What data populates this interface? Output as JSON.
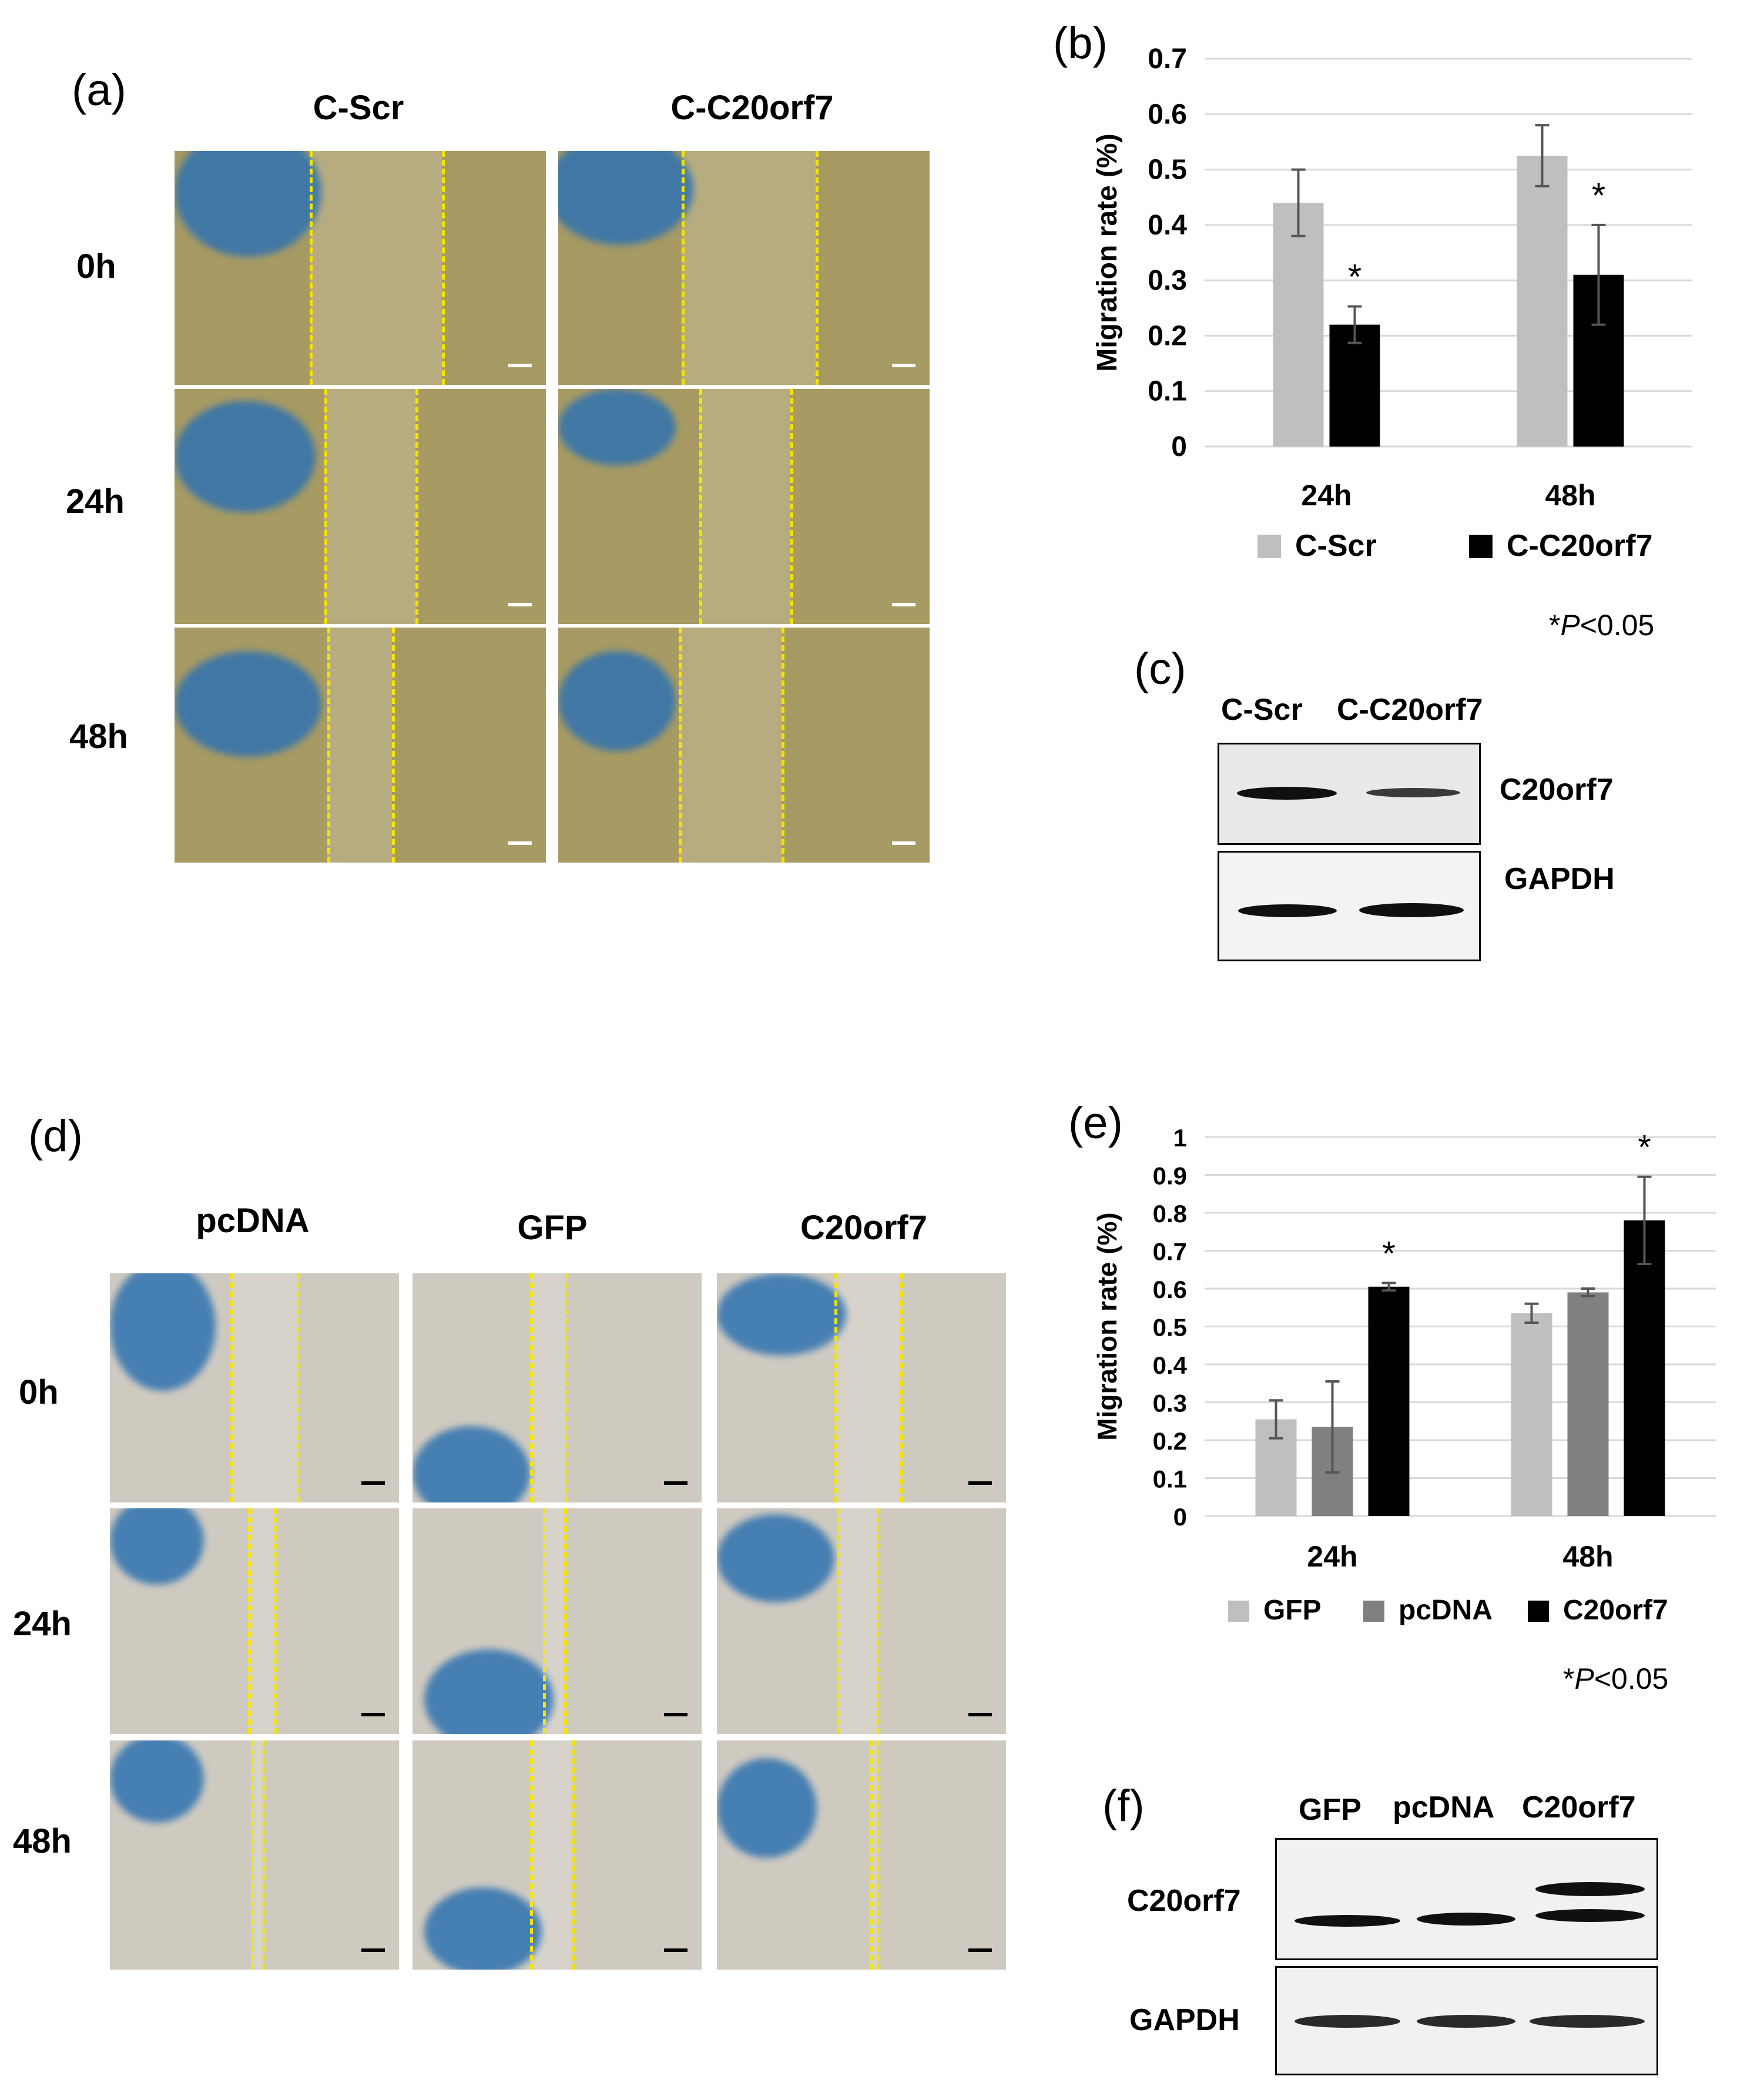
{
  "panels": {
    "a": {
      "letter": "(a)",
      "columns": [
        "C-Scr",
        "C-C20orf7"
      ],
      "rows": [
        "0h",
        "24h",
        "48h"
      ]
    },
    "b": {
      "letter": "(b)"
    },
    "c": {
      "letter": "(c)",
      "lanes": [
        "C-Scr",
        "C-C20orf7"
      ],
      "rows": [
        "C20orf7",
        "GAPDH"
      ]
    },
    "d": {
      "letter": "(d)",
      "columns": [
        "pcDNA",
        "GFP",
        "C20orf7"
      ],
      "rows": [
        "0h",
        "24h",
        "48h"
      ]
    },
    "e": {
      "letter": "(e)"
    },
    "f": {
      "letter": "(f)",
      "lanes": [
        "GFP",
        "pcDNA",
        "C20orf7"
      ],
      "rows": [
        "C20orf7",
        "GAPDH"
      ]
    }
  },
  "colors": {
    "cscr": "#bfbfbf",
    "c20orf7": "#000000",
    "gfp": "#bfbfbf",
    "pcdna": "#808080",
    "micro_a": "#a79a63",
    "micro_d": "#cfcac0",
    "blue_blob": "#2f72b0",
    "dash": "#f4e400"
  },
  "chart_data": [
    {
      "type": "bar",
      "panel": "b",
      "categories": [
        "24h",
        "48h"
      ],
      "series": [
        {
          "name": "C-Scr",
          "values": [
            0.44,
            0.525
          ],
          "errors": [
            0.06,
            0.055
          ],
          "color": "#bfbfbf"
        },
        {
          "name": "C-C20orf7",
          "values": [
            0.22,
            0.31
          ],
          "errors": [
            0.033,
            0.09
          ],
          "color": "#000000"
        }
      ],
      "significance": [
        "*",
        "*"
      ],
      "ylabel": "Migration rate (%)",
      "yticks": [
        "0",
        "0.1",
        "0.2",
        "0.3",
        "0.4",
        "0.5",
        "0.6",
        "0.7"
      ],
      "ylim": [
        0,
        0.7
      ],
      "grid": true,
      "legend": "bottom",
      "note_prefix": "*",
      "note_p": "P",
      "note_suffix": "<0.05"
    },
    {
      "type": "bar",
      "panel": "e",
      "categories": [
        "24h",
        "48h"
      ],
      "series": [
        {
          "name": "GFP",
          "values": [
            0.255,
            0.535
          ],
          "errors": [
            0.05,
            0.025
          ],
          "color": "#bfbfbf"
        },
        {
          "name": "pcDNA",
          "values": [
            0.235,
            0.59
          ],
          "errors": [
            0.12,
            0.01
          ],
          "color": "#808080"
        },
        {
          "name": "C20orf7",
          "values": [
            0.605,
            0.78
          ],
          "errors": [
            0.01,
            0.115
          ],
          "color": "#000000"
        }
      ],
      "significance": [
        "*",
        "*"
      ],
      "ylabel": "Migration rate (%)",
      "yticks": [
        "0",
        "0.1",
        "0.2",
        "0.3",
        "0.4",
        "0.5",
        "0.6",
        "0.7",
        "0.8",
        "0.9",
        "1"
      ],
      "ylim": [
        0,
        1
      ],
      "grid": true,
      "legend": "bottom",
      "note_prefix": "*",
      "note_p": "P",
      "note_suffix": "<0.05"
    }
  ]
}
